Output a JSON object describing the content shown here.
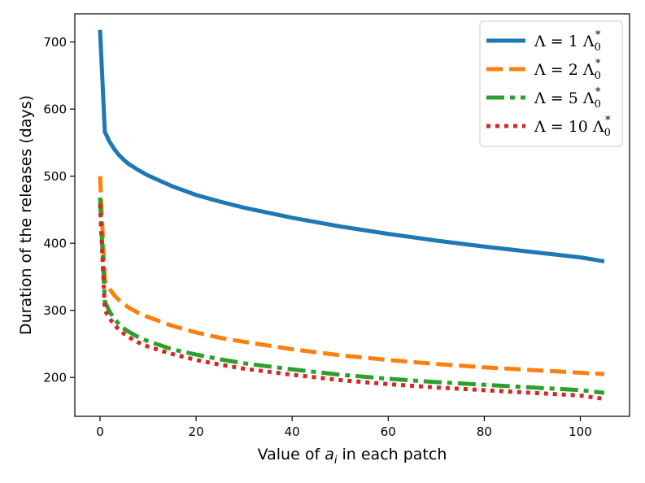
{
  "chart_data": {
    "type": "line",
    "title": "",
    "xlabel": "Value of a_i in each patch",
    "ylabel": "Duration of the releases (days)",
    "xlim": [
      -5.25,
      110.25
    ],
    "ylim": [
      142,
      742
    ],
    "x_ticks": [
      0,
      20,
      40,
      60,
      80,
      100
    ],
    "y_ticks": [
      200,
      300,
      400,
      500,
      600,
      700
    ],
    "grid": false,
    "legend_position": "upper right",
    "x": [
      0,
      1,
      2,
      3,
      4,
      5,
      6,
      8,
      10,
      15,
      20,
      25,
      30,
      40,
      50,
      60,
      70,
      80,
      90,
      100,
      105
    ],
    "series": [
      {
        "name": "Λ = 1 Λ0*",
        "label_main": "Λ = 1 Λ",
        "label_sub": "0",
        "label_sup": "*",
        "color": "#1f77b4",
        "style": "solid",
        "values": [
          718,
          566,
          551,
          540,
          531,
          524,
          518,
          509,
          501,
          485,
          472,
          462,
          453,
          438,
          425,
          414,
          404,
          395,
          387,
          379,
          373
        ]
      },
      {
        "name": "Λ = 2 Λ0*",
        "label_main": "Λ = 2 Λ",
        "label_sub": "0",
        "label_sup": "*",
        "color": "#ff7f0e",
        "style": "dashed",
        "values": [
          500,
          345,
          332,
          322,
          315,
          309,
          304,
          296,
          290,
          277,
          267,
          259,
          253,
          242,
          233,
          226,
          220,
          215,
          211,
          207,
          205
        ]
      },
      {
        "name": "Λ = 5 Λ0*",
        "label_main": "Λ = 5 Λ",
        "label_sub": "0",
        "label_sup": "*",
        "color": "#2ca02c",
        "style": "dashdot",
        "values": [
          468,
          313,
          298,
          287,
          279,
          273,
          268,
          260,
          254,
          242,
          234,
          227,
          221,
          212,
          204,
          198,
          193,
          189,
          185,
          181,
          177
        ]
      },
      {
        "name": "Λ = 10 Λ0*",
        "label_main": "Λ = 10 Λ",
        "label_sub": "0",
        "label_sup": "*",
        "color": "#d62728",
        "style": "dotted",
        "values": [
          458,
          300,
          288,
          278,
          271,
          265,
          260,
          252,
          246,
          235,
          226,
          219,
          213,
          204,
          196,
          190,
          185,
          181,
          177,
          173,
          168
        ]
      }
    ]
  }
}
